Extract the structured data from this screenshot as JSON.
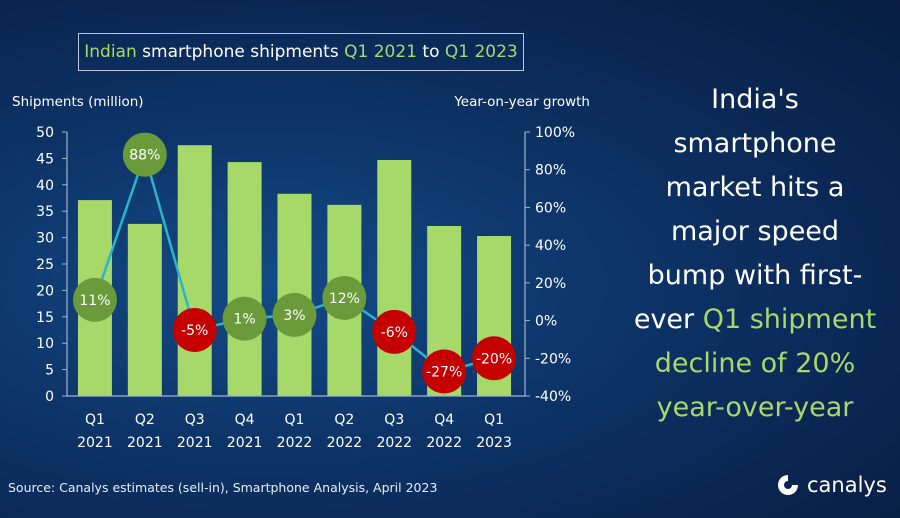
{
  "title": {
    "part1": "Indian",
    "part2": " smartphone shipments ",
    "part3": "Q1 2021",
    "part4": " to ",
    "part5": "Q1 2023"
  },
  "headline": {
    "line1": "India's",
    "line2": "smartphone",
    "line3": "market hits a",
    "line4": "major speed",
    "line5": "bump with first-",
    "line6a": "ever ",
    "line6b": "Q1 shipment",
    "line7": "decline of 20%",
    "line8": "year-over-year"
  },
  "source": "Source: Canalys estimates (sell-in), Smartphone Analysis, April 2023",
  "logo": "canalys",
  "colors": {
    "bar": "#a6d96a",
    "positive": "#6a9a3a",
    "negative": "#c40000",
    "line": "#2bb5c9",
    "accent": "#a6d96a"
  },
  "chart_data": {
    "type": "bar",
    "title": "Indian smartphone shipments Q1 2021 to Q1 2023",
    "ylabel": "Shipments (million)",
    "y2label": "Year-on-year growth",
    "categories": [
      [
        "Q1",
        "2021"
      ],
      [
        "Q2",
        "2021"
      ],
      [
        "Q3",
        "2021"
      ],
      [
        "Q4",
        "2021"
      ],
      [
        "Q1",
        "2022"
      ],
      [
        "Q2",
        "2022"
      ],
      [
        "Q3",
        "2022"
      ],
      [
        "Q4",
        "2022"
      ],
      [
        "Q1",
        "2023"
      ]
    ],
    "ylim": [
      0,
      50
    ],
    "yticks": [
      "0",
      "5",
      "10",
      "15",
      "20",
      "25",
      "30",
      "35",
      "40",
      "45",
      "50"
    ],
    "y2lim": [
      -40,
      100
    ],
    "y2ticks": [
      "-40%",
      "-20%",
      "0%",
      "20%",
      "40%",
      "60%",
      "80%",
      "100%"
    ],
    "series": [
      {
        "name": "Shipments (million)",
        "type": "bar",
        "values": [
          37.1,
          32.6,
          47.5,
          44.3,
          38.3,
          36.2,
          44.7,
          32.2,
          30.3
        ]
      },
      {
        "name": "Year-on-year growth",
        "type": "line",
        "values": [
          11,
          88,
          -5,
          1,
          3,
          12,
          -6,
          -27,
          -20
        ],
        "labels": [
          "11%",
          "88%",
          "-5%",
          "1%",
          "3%",
          "12%",
          "-6%",
          "-27%",
          "-20%"
        ]
      }
    ]
  }
}
